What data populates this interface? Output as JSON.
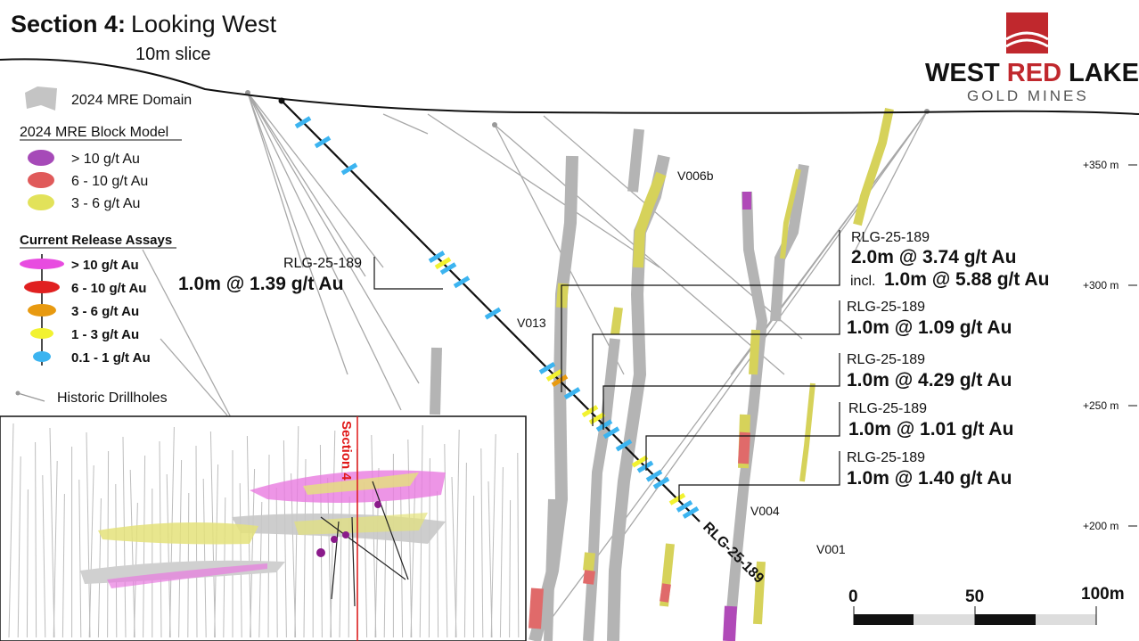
{
  "header": {
    "title_bold": "Section 4:",
    "title_rest": "Looking West",
    "slice": "10m slice"
  },
  "logo": {
    "word_west": "WEST",
    "word_red": "RED",
    "word_lake": "LAKE",
    "tagline": "GOLD MINES"
  },
  "legend": {
    "domain": "2024 MRE Domain",
    "block_model_title": "2024 MRE Block Model",
    "block_model": [
      "> 10 g/t Au",
      "6 - 10 g/t Au",
      "3 - 6 g/t Au"
    ],
    "assays_title": "Current Release Assays",
    "assays": [
      "> 10 g/t Au",
      "6 - 10 g/t Au",
      "3 - 6 g/t Au",
      "1 - 3 g/t Au",
      "0.1 - 1 g/t Au"
    ],
    "historic": "Historic Drillholes"
  },
  "elevations": [
    "+350 m",
    "+300 m",
    "+250 m",
    "+200 m"
  ],
  "veins": [
    "V006b",
    "V013",
    "V004",
    "V001"
  ],
  "drillhole": "RLG-25-189",
  "intercepts": [
    {
      "hole": "RLG-25-189",
      "text": "1.0m @ 1.39 g/t Au"
    },
    {
      "hole": "RLG-25-189",
      "text": "2.0m @ 3.74 g/t Au",
      "incl_prefix": "incl.",
      "incl_text": "1.0m @ 5.88 g/t Au"
    },
    {
      "hole": "RLG-25-189",
      "text": "1.0m @ 1.09 g/t Au"
    },
    {
      "hole": "RLG-25-189",
      "text": "1.0m @ 4.29 g/t Au"
    },
    {
      "hole": "RLG-25-189",
      "text": "1.0m @ 1.01 g/t Au"
    },
    {
      "hole": "RLG-25-189",
      "text": "1.0m @ 1.40 g/t Au"
    }
  ],
  "inset": {
    "label": "Section 4"
  },
  "scale": [
    "0",
    "50",
    "100m"
  ]
}
